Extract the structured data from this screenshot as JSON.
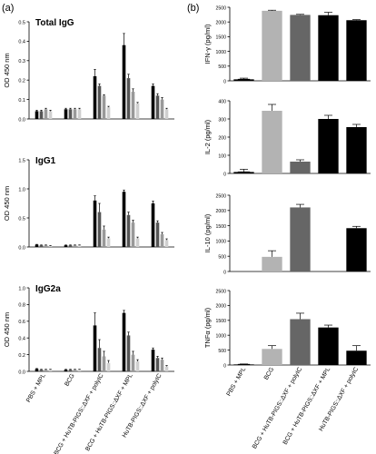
{
  "panel_labels": {
    "a": "(a)",
    "b": "(b)"
  },
  "colors": {
    "shades": [
      "#000000",
      "#555555",
      "#999999",
      "#cfcfcf"
    ],
    "groups_b": [
      "#000000",
      "#b3b3b3",
      "#666666",
      "#000000",
      "#000000"
    ]
  },
  "x_categories": [
    "PBS + MPL",
    "BCG",
    "BCG + HuTB-PIGS::ΔXF + polyIC",
    "BCG + HuTB-PIGS::ΔXF + MPL",
    "HuTB-PIGS::ΔXF + polyIC"
  ],
  "chart_data": [
    {
      "panel": "a",
      "type": "bar",
      "title": "Total IgG",
      "ylabel": "OD 450 nm",
      "ylim": [
        0,
        0.5
      ],
      "yticks": [
        "0.0",
        "0.1",
        "0.2",
        "0.3",
        "0.4",
        "0.5"
      ],
      "groups": [
        {
          "values": [
            0.04,
            0.04,
            0.05,
            0.04
          ],
          "errors": [
            0.005,
            0.005,
            0.005,
            0.005
          ]
        },
        {
          "values": [
            0.05,
            0.05,
            0.05,
            0.05
          ],
          "errors": [
            0.005,
            0.005,
            0.005,
            0.005
          ]
        },
        {
          "values": [
            0.22,
            0.17,
            0.12,
            0.06
          ],
          "errors": [
            0.035,
            0.01,
            0.005,
            0.005
          ]
        },
        {
          "values": [
            0.38,
            0.21,
            0.14,
            0.08
          ],
          "errors": [
            0.06,
            0.02,
            0.015,
            0.005
          ]
        },
        {
          "values": [
            0.17,
            0.12,
            0.1,
            0.05
          ],
          "errors": [
            0.01,
            0.01,
            0.01,
            0.005
          ]
        }
      ]
    },
    {
      "panel": "a",
      "type": "bar",
      "title": "IgG1",
      "ylabel": "OD 450 nm",
      "ylim": [
        0,
        1.5
      ],
      "yticks": [
        "0.0",
        "0.5",
        "1.0",
        "1.5"
      ],
      "groups": [
        {
          "values": [
            0.04,
            0.03,
            0.03,
            0.02
          ],
          "errors": [
            0.005,
            0.005,
            0.005,
            0.005
          ]
        },
        {
          "values": [
            0.03,
            0.03,
            0.03,
            0.03
          ],
          "errors": [
            0.005,
            0.005,
            0.005,
            0.005
          ]
        },
        {
          "values": [
            0.8,
            0.6,
            0.3,
            0.15
          ],
          "errors": [
            0.08,
            0.15,
            0.06,
            0.02
          ]
        },
        {
          "values": [
            0.95,
            0.55,
            0.42,
            0.15
          ],
          "errors": [
            0.03,
            0.05,
            0.04,
            0.02
          ]
        },
        {
          "values": [
            0.75,
            0.42,
            0.22,
            0.12
          ],
          "errors": [
            0.04,
            0.03,
            0.03,
            0.02
          ]
        }
      ]
    },
    {
      "panel": "a",
      "type": "bar",
      "title": "IgG2a",
      "ylabel": "OD 450 nm",
      "ylim": [
        0,
        1.0
      ],
      "yticks": [
        "0.0",
        "0.2",
        "0.4",
        "0.6",
        "0.8",
        "1.0"
      ],
      "groups": [
        {
          "values": [
            0.03,
            0.02,
            0.02,
            0.02
          ],
          "errors": [
            0.005,
            0.005,
            0.005,
            0.005
          ]
        },
        {
          "values": [
            0.02,
            0.02,
            0.02,
            0.02
          ],
          "errors": [
            0.005,
            0.005,
            0.005,
            0.005
          ]
        },
        {
          "values": [
            0.55,
            0.28,
            0.18,
            0.1
          ],
          "errors": [
            0.15,
            0.1,
            0.06,
            0.03
          ]
        },
        {
          "values": [
            0.7,
            0.43,
            0.2,
            0.12
          ],
          "errors": [
            0.03,
            0.04,
            0.04,
            0.02
          ]
        },
        {
          "values": [
            0.26,
            0.16,
            0.14,
            0.06
          ],
          "errors": [
            0.02,
            0.02,
            0.02,
            0.01
          ]
        }
      ]
    },
    {
      "panel": "b",
      "type": "bar",
      "ylabel": "IFN-γ (pg/ml)",
      "ylim": [
        0,
        2500
      ],
      "yticks": [
        "0",
        "500",
        "1000",
        "1500",
        "2000",
        "2500"
      ],
      "values": [
        50,
        2380,
        2240,
        2230,
        2060
      ],
      "errors": [
        40,
        20,
        20,
        100,
        20
      ]
    },
    {
      "panel": "b",
      "type": "bar",
      "ylabel": "IL-2 (pg/ml)",
      "ylim": [
        0,
        400
      ],
      "yticks": [
        "0",
        "100",
        "200",
        "300",
        "400"
      ],
      "values": [
        8,
        345,
        65,
        300,
        255
      ],
      "errors": [
        15,
        35,
        10,
        20,
        15
      ]
    },
    {
      "panel": "b",
      "type": "bar",
      "ylabel": "IL-10 (pg/ml)",
      "ylim": [
        0,
        2500
      ],
      "yticks": [
        "0",
        "500",
        "1000",
        "1500",
        "2000",
        "2500"
      ],
      "values": [
        0,
        480,
        2100,
        0,
        1420
      ],
      "errors": [
        0,
        200,
        100,
        0,
        60
      ]
    },
    {
      "panel": "b",
      "type": "bar",
      "ylabel": "TNFα (pg/ml)",
      "ylim": [
        0,
        2500
      ],
      "yticks": [
        "0",
        "500",
        "1000",
        "1500",
        "2000",
        "2500"
      ],
      "values": [
        20,
        540,
        1540,
        1260,
        480
      ],
      "errors": [
        15,
        110,
        200,
        80,
        170
      ]
    }
  ]
}
